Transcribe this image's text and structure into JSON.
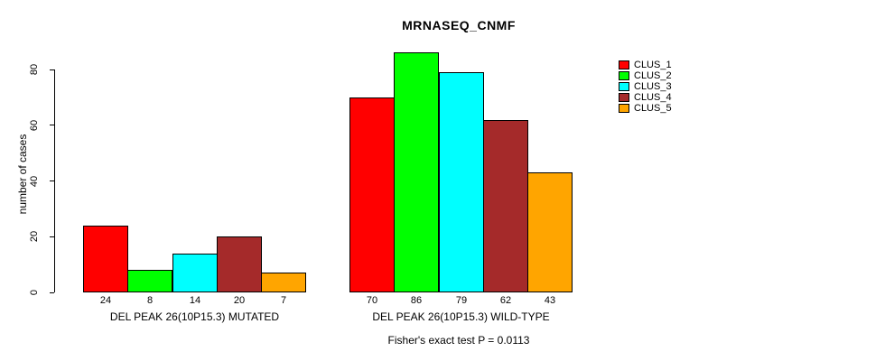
{
  "title": "MRNASEQ_CNMF",
  "footer": "Fisher's exact test P = 0.0113",
  "y_axis": {
    "label": "number of cases",
    "ticks": [
      0,
      20,
      40,
      60,
      80
    ]
  },
  "chart_data": {
    "type": "bar",
    "title": "MRNASEQ_CNMF",
    "xlabel": "",
    "ylabel": "number of cases",
    "ylim": [
      0,
      80
    ],
    "yticks": [
      0,
      20,
      40,
      60,
      80
    ],
    "grid": false,
    "legend_position": "right",
    "bar_value_labels": true,
    "categories": [
      "DEL PEAK 26(10P15.3) MUTATED",
      "DEL PEAK 26(10P15.3) WILD-TYPE"
    ],
    "series": [
      {
        "name": "CLUS_1",
        "color": "#FF0000",
        "values": [
          24,
          70
        ]
      },
      {
        "name": "CLUS_2",
        "color": "#00FF00",
        "values": [
          8,
          86
        ]
      },
      {
        "name": "CLUS_3",
        "color": "#00FFFF",
        "values": [
          14,
          79
        ]
      },
      {
        "name": "CLUS_4",
        "color": "#A52A2A",
        "values": [
          20,
          62
        ]
      },
      {
        "name": "CLUS_5",
        "color": "#FFA500",
        "values": [
          7,
          43
        ]
      }
    ],
    "annotation": "Fisher's exact test P = 0.0113"
  }
}
